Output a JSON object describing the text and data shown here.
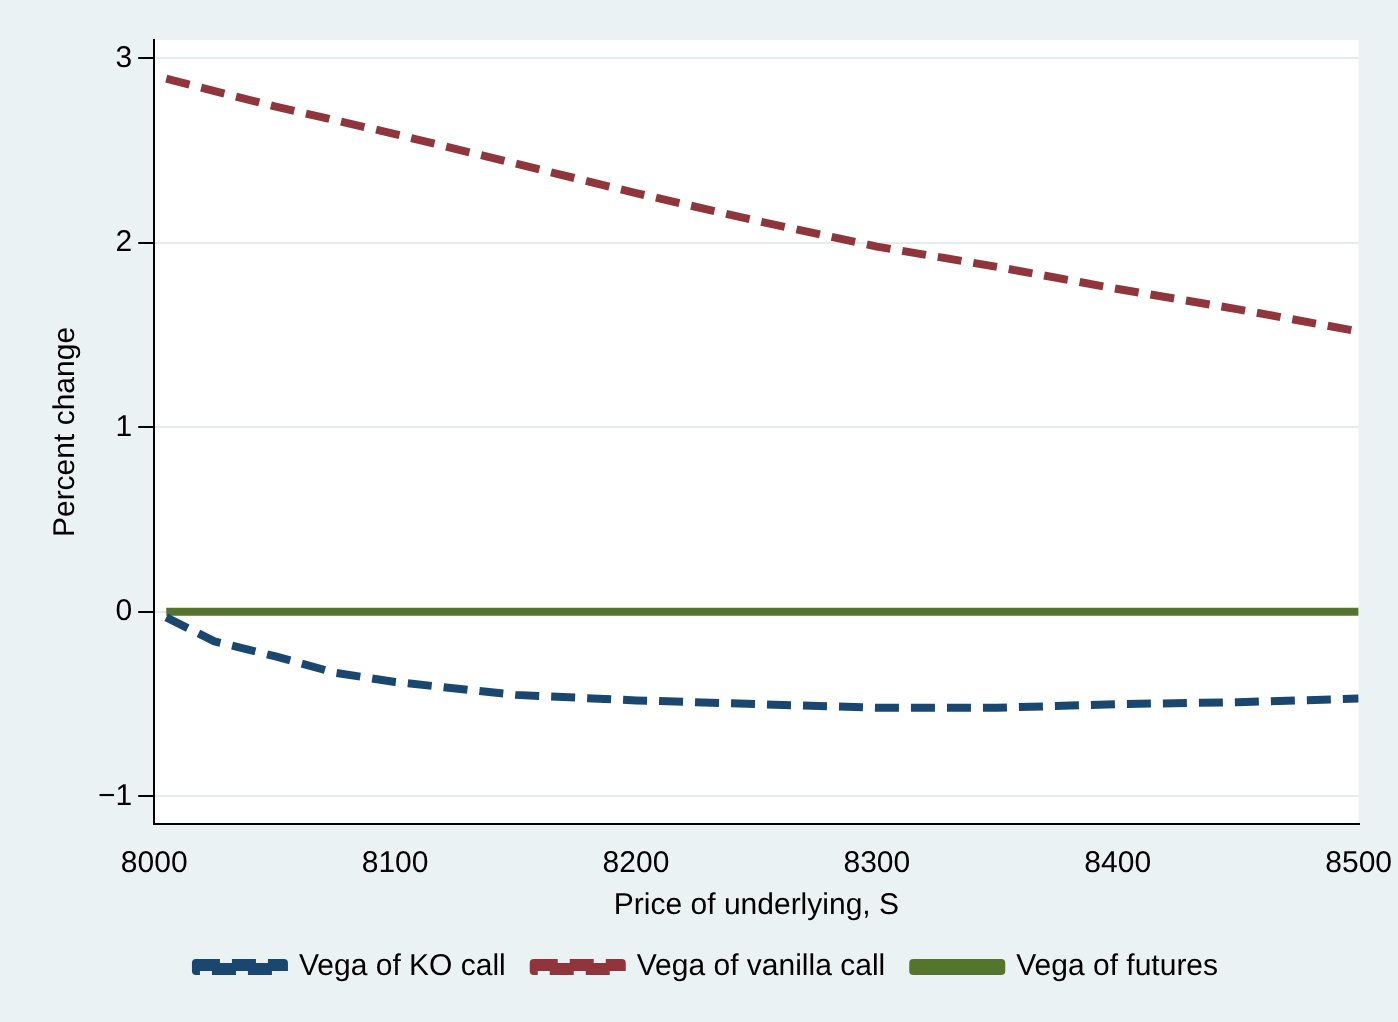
{
  "chart_data": {
    "type": "line",
    "xlabel": "Price of underlying, S",
    "ylabel": "Percent change",
    "xlim": [
      8000,
      8500
    ],
    "xticks": [
      8000,
      8100,
      8200,
      8300,
      8400,
      8500
    ],
    "ylim": [
      -1.15,
      3.1
    ],
    "yticks": [
      -1,
      0,
      1,
      2,
      3
    ],
    "grid": "y",
    "legend": "bottom",
    "marker": "none",
    "series": [
      {
        "name": "Vega of KO call",
        "color": "#1a476f",
        "line_style": "dashed",
        "x": [
          8005,
          8025,
          8050,
          8075,
          8100,
          8150,
          8200,
          8250,
          8300,
          8350,
          8400,
          8450,
          8500
        ],
        "values": [
          -0.03,
          -0.16,
          -0.24,
          -0.33,
          -0.38,
          -0.45,
          -0.48,
          -0.5,
          -0.52,
          -0.52,
          -0.5,
          -0.49,
          -0.47
        ]
      },
      {
        "name": "Vega of vanilla call",
        "color": "#90353b",
        "line_style": "dashed",
        "x": [
          8005,
          8050,
          8100,
          8150,
          8200,
          8250,
          8300,
          8350,
          8400,
          8450,
          8500
        ],
        "values": [
          2.89,
          2.74,
          2.59,
          2.43,
          2.27,
          2.12,
          1.98,
          1.87,
          1.75,
          1.64,
          1.52
        ]
      },
      {
        "name": "Vega of futures",
        "color": "#55752f",
        "line_style": "solid",
        "x": [
          8005,
          8500
        ],
        "values": [
          0,
          0
        ]
      }
    ]
  }
}
